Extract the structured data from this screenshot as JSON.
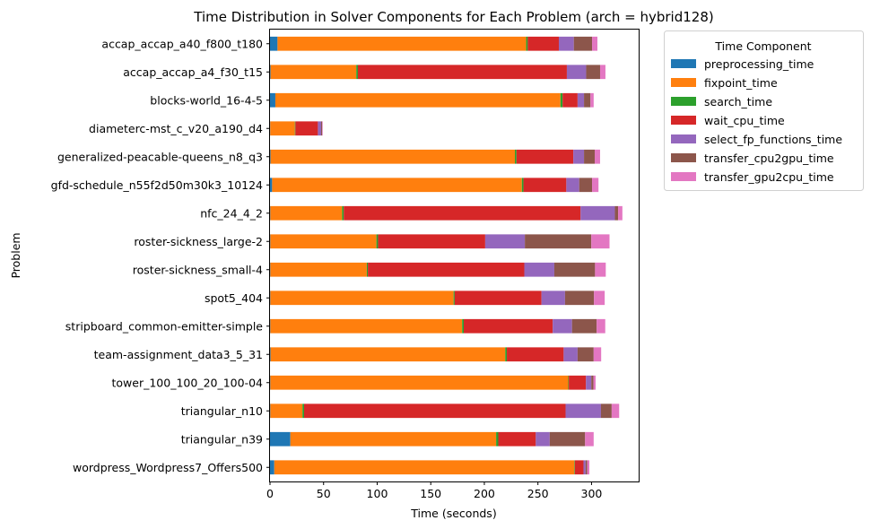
{
  "chart_data": {
    "type": "bar",
    "orientation": "horizontal",
    "stacked": true,
    "title": "Time Distribution in Solver Components for Each Problem (arch = hybrid128)",
    "xlabel": "Time (seconds)",
    "ylabel": "Problem",
    "xlim": [
      0,
      344
    ],
    "xticks": [
      0,
      50,
      100,
      150,
      200,
      250,
      300
    ],
    "grid": false,
    "legend": {
      "title": "Time Component",
      "placement": "outside-upper-right"
    },
    "categories": [
      "accap_accap_a40_f800_t180",
      "accap_accap_a4_f30_t15",
      "blocks-world_16-4-5",
      "diameterc-mst_c_v20_a190_d4",
      "generalized-peacable-queens_n8_q3",
      "gfd-schedule_n55f2d50m30k3_10124",
      "nfc_24_4_2",
      "roster-sickness_large-2",
      "roster-sickness_small-4",
      "spot5_404",
      "stripboard_common-emitter-simple",
      "team-assignment_data3_5_31",
      "tower_100_100_20_100-04",
      "triangular_n10",
      "triangular_n39",
      "wordpress_Wordpress7_Offers500"
    ],
    "series": [
      {
        "name": "preprocessing_time",
        "color": "#1f77b4",
        "values": [
          7,
          0.5,
          5,
          0.2,
          0.5,
          2,
          0.3,
          0.3,
          0.3,
          0.3,
          0.3,
          0.5,
          0.3,
          0.3,
          19,
          4
        ]
      },
      {
        "name": "fixpoint_time",
        "color": "#ff7f0e",
        "values": [
          232,
          80,
          266,
          23,
          228,
          233,
          67,
          99,
          90,
          171,
          179,
          219,
          278,
          30,
          192,
          280
        ]
      },
      {
        "name": "search_time",
        "color": "#2ca02c",
        "values": [
          1.5,
          1.5,
          2,
          0.5,
          1.5,
          1.5,
          1.5,
          1.5,
          1,
          1,
          1.5,
          1.5,
          0.5,
          1.5,
          2,
          0.5
        ]
      },
      {
        "name": "wait_cpu_time",
        "color": "#d62728",
        "values": [
          29,
          195,
          14,
          21,
          53,
          40,
          221,
          100,
          146,
          81,
          83,
          53,
          16,
          244,
          35,
          8
        ]
      },
      {
        "name": "select_fp_functions_time",
        "color": "#9467bd",
        "values": [
          14,
          18,
          6,
          3,
          10,
          12,
          32,
          37,
          28,
          22,
          18,
          13,
          5,
          33,
          13,
          2
        ]
      },
      {
        "name": "transfer_cpu2gpu_time",
        "color": "#8c564b",
        "values": [
          17,
          13,
          6,
          1,
          10,
          12,
          3,
          62,
          38,
          27,
          23,
          15,
          2,
          10,
          33,
          1.5
        ]
      },
      {
        "name": "transfer_gpu2cpu_time",
        "color": "#e377c2",
        "values": [
          5,
          5,
          3,
          0.5,
          5,
          6,
          4,
          17,
          10,
          10,
          8,
          7,
          2,
          7,
          8,
          2
        ]
      }
    ]
  }
}
